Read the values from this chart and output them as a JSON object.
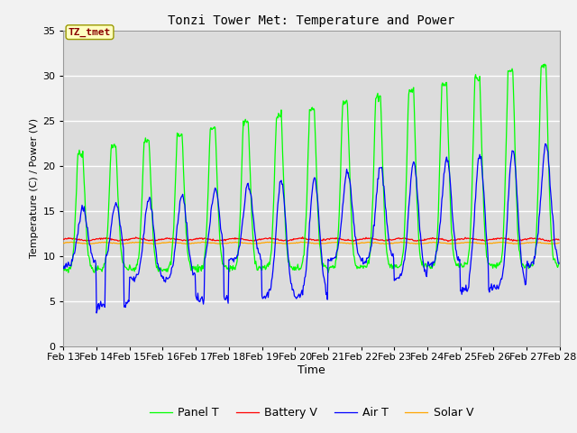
{
  "title": "Tonzi Tower Met: Temperature and Power",
  "xlabel": "Time",
  "ylabel": "Temperature (C) / Power (V)",
  "ylim": [
    0,
    35
  ],
  "yticks": [
    0,
    5,
    10,
    15,
    20,
    25,
    30,
    35
  ],
  "xtick_labels": [
    "Feb 13",
    "Feb 14",
    "Feb 15",
    "Feb 16",
    "Feb 17",
    "Feb 18",
    "Feb 19",
    "Feb 20",
    "Feb 21",
    "Feb 22",
    "Feb 23",
    "Feb 24",
    "Feb 25",
    "Feb 26",
    "Feb 27",
    "Feb 28"
  ],
  "annotation_text": "TZ_tmet",
  "annotation_color": "#8B0000",
  "annotation_bg": "#FFFFC0",
  "annotation_edge": "#999900",
  "panel_t_color": "#00FF00",
  "battery_v_color": "#FF0000",
  "air_t_color": "#0000FF",
  "solar_v_color": "#FFA500",
  "plot_bg_color": "#DCDCDC",
  "fig_bg_color": "#F2F2F2",
  "grid_color": "#FFFFFF",
  "line_width": 0.9,
  "legend_labels": [
    "Panel T",
    "Battery V",
    "Air T",
    "Solar V"
  ],
  "figsize": [
    6.4,
    4.8
  ],
  "dpi": 100
}
